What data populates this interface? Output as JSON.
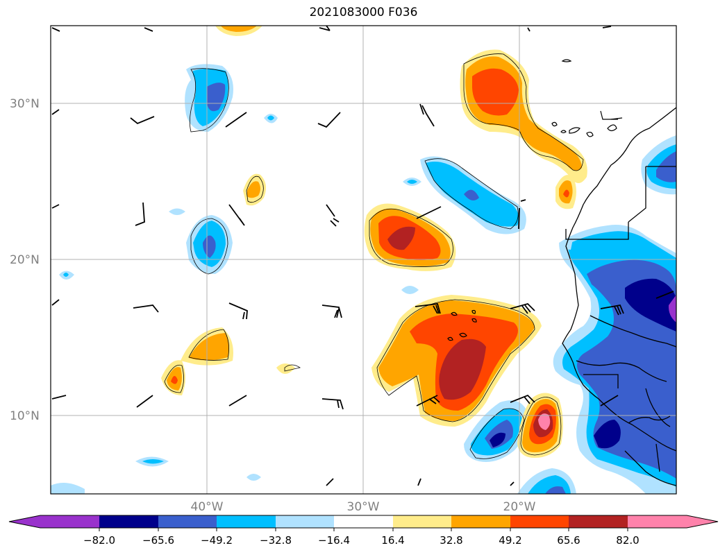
{
  "title": "2021083000 F036",
  "lat_labels": [
    "30°N",
    "20°N",
    "10°N"
  ],
  "lon_labels": [
    "40°W",
    "30°W",
    "20°W"
  ],
  "colors": {
    "neg_extreme": "#9932cc",
    "neg_4": "#00008b",
    "neg_3": "#3a5fcd",
    "neg_2": "#00bfff",
    "neg_1": "#b0e2ff",
    "neutral": "#ffffff",
    "pos_1": "#ffec8b",
    "pos_2": "#ffa500",
    "pos_3": "#ff4500",
    "pos_4": "#b22222",
    "pos_extreme": "#ff82ab",
    "coast": "#000000",
    "grid": "#b0b0b0"
  },
  "colorbar": {
    "ticks": [
      "−82.0",
      "−65.6",
      "−49.2",
      "−32.8",
      "−16.4",
      "16.4",
      "32.8",
      "49.2",
      "65.6",
      "82.0"
    ],
    "extend": "both"
  }
}
